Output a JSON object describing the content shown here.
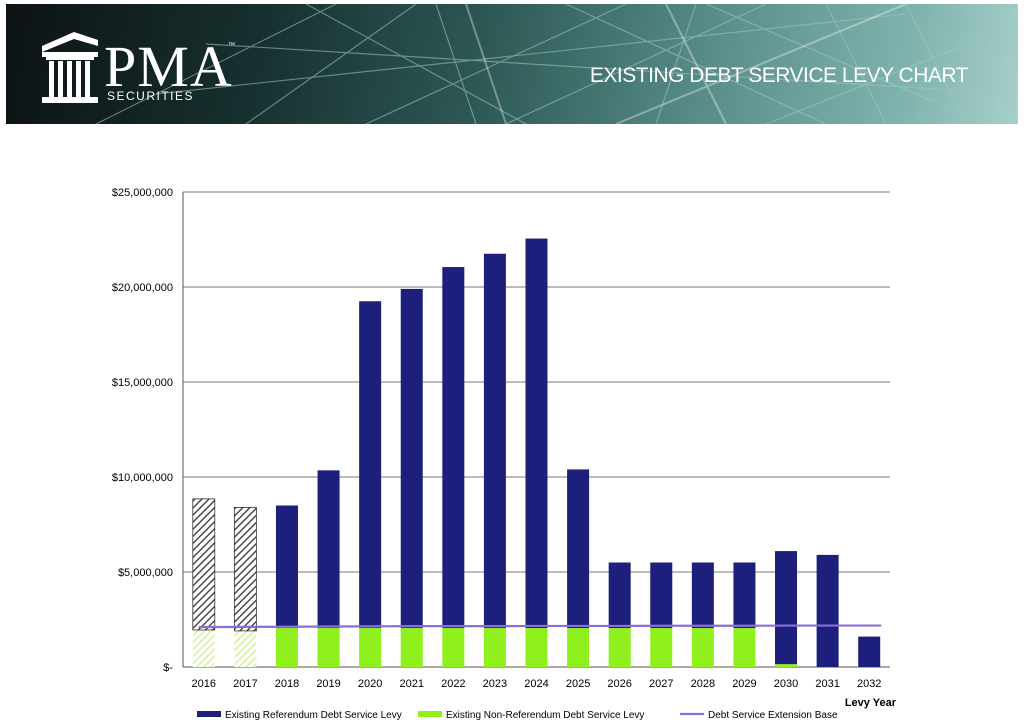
{
  "header": {
    "logo_text": "PMA",
    "logo_subtext": "SECURITIES",
    "logo_tm": "™",
    "title": "EXISTING DEBT SERVICE LEVY CHART"
  },
  "chart_data": {
    "type": "bar",
    "stacked": true,
    "xlabel": "Levy Year",
    "ylabel": "",
    "ylim": [
      0,
      25000000
    ],
    "yticks": [
      0,
      5000000,
      10000000,
      15000000,
      20000000,
      25000000
    ],
    "ytick_labels": [
      "$-",
      "$5,000,000",
      "$10,000,000",
      "$15,000,000",
      "$20,000,000",
      "$25,000,000"
    ],
    "grid": true,
    "legend_position": "bottom",
    "categories": [
      "2016",
      "2017",
      "2018",
      "2019",
      "2020",
      "2021",
      "2022",
      "2023",
      "2024",
      "2025",
      "2026",
      "2027",
      "2028",
      "2029",
      "2030",
      "2031",
      "2032"
    ],
    "series": [
      {
        "name": "Existing Non-Referendum Debt Service Levy",
        "kind": "bar",
        "color": "#8ff01d",
        "values": [
          1950000,
          1900000,
          2050000,
          2050000,
          2050000,
          2050000,
          2050000,
          2050000,
          2050000,
          2050000,
          2050000,
          2050000,
          2050000,
          2050000,
          150000,
          0,
          0
        ]
      },
      {
        "name": "Existing Referendum Debt Service Levy",
        "kind": "bar",
        "color": "#1c1f7c",
        "values": [
          6900000,
          6500000,
          6450000,
          8300000,
          17200000,
          17850000,
          19000000,
          19700000,
          20500000,
          8350000,
          3450000,
          3450000,
          3450000,
          3450000,
          5950000,
          5900000,
          1600000
        ]
      },
      {
        "name": "Debt Service Extension Base",
        "kind": "line",
        "color": "#8a6fd6",
        "values": [
          2100000,
          2110000,
          2120000,
          2130000,
          2140000,
          2150000,
          2150000,
          2150000,
          2160000,
          2160000,
          2160000,
          2170000,
          2170000,
          2170000,
          2180000,
          2180000,
          2180000
        ]
      }
    ],
    "hatched_categories": [
      "2016",
      "2017"
    ],
    "hatch_color_dark": "#333333",
    "hatch_color_light": "#cfef8a"
  }
}
